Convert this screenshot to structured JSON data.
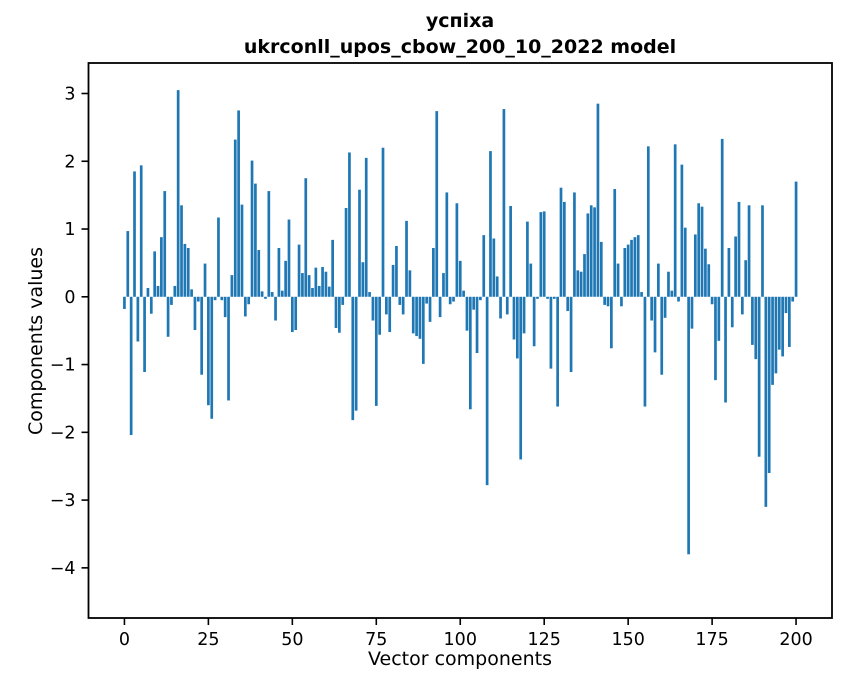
{
  "title": {
    "line1": "успіха",
    "line2": "ukrconll_upos_cbow_200_10_2022 model"
  },
  "chart_data": {
    "type": "bar",
    "title": "успіха — ukrconll_upos_cbow_200_10_2022 model",
    "xlabel": "Vector components",
    "ylabel": "Components values",
    "bar_color": "#1f77b4",
    "axis_color": "#000000",
    "grid": false,
    "legend": null,
    "x_ticks": [
      0,
      25,
      50,
      75,
      100,
      125,
      150,
      175,
      200
    ],
    "y_ticks": [
      3,
      2,
      1,
      0,
      -1,
      -2,
      -3,
      -4
    ],
    "xlim": [
      -10.7,
      210.7
    ],
    "ylim": [
      -4.74,
      3.45
    ],
    "x_start_index": 0,
    "values": [
      -0.18,
      0.97,
      -2.04,
      1.85,
      -0.66,
      1.94,
      -1.11,
      0.13,
      -0.25,
      0.67,
      0.16,
      0.88,
      1.56,
      -0.59,
      -0.12,
      0.16,
      3.05,
      1.35,
      0.78,
      0.72,
      0.11,
      -0.49,
      -0.07,
      -1.15,
      0.49,
      -1.6,
      -1.8,
      -0.05,
      1.17,
      -0.05,
      -0.3,
      -1.53,
      0.32,
      2.32,
      2.75,
      1.36,
      -0.29,
      -0.11,
      2.01,
      1.67,
      0.69,
      0.08,
      -0.03,
      1.56,
      0.07,
      -0.35,
      0.72,
      0.09,
      0.53,
      1.14,
      -0.52,
      -0.49,
      0.77,
      0.35,
      1.75,
      0.32,
      0.13,
      0.43,
      0.16,
      0.44,
      0.37,
      0.15,
      0.84,
      -0.46,
      -0.53,
      -0.12,
      1.31,
      2.13,
      -1.82,
      -1.68,
      1.58,
      0.51,
      2.05,
      0.07,
      -0.35,
      -1.61,
      -0.56,
      2.2,
      -0.26,
      -0.52,
      0.47,
      0.75,
      -0.12,
      -0.26,
      1.12,
      0.39,
      -0.54,
      -0.58,
      -0.62,
      -0.99,
      -0.1,
      -0.37,
      0.72,
      2.74,
      -0.3,
      0.35,
      1.54,
      -0.11,
      -0.07,
      1.38,
      0.53,
      0.09,
      -0.5,
      -1.66,
      -0.19,
      -0.83,
      -0.05,
      0.91,
      -2.78,
      2.15,
      0.86,
      0.3,
      -0.32,
      2.77,
      -0.26,
      1.34,
      -0.63,
      -0.91,
      -2.4,
      -0.54,
      1.11,
      0.49,
      -0.73,
      -0.03,
      1.25,
      1.26,
      -0.03,
      -1.06,
      -0.03,
      -1.62,
      1.61,
      1.4,
      -0.21,
      -1.11,
      1.54,
      0.39,
      0.37,
      0.63,
      1.23,
      1.35,
      1.32,
      2.85,
      0.81,
      -0.12,
      -0.14,
      -0.76,
      1.59,
      0.49,
      -0.14,
      0.72,
      0.77,
      0.84,
      0.88,
      0.91,
      0.07,
      -1.62,
      2.22,
      -0.35,
      -0.82,
      0.49,
      -1.15,
      -0.31,
      0.37,
      0.09,
      2.25,
      -0.07,
      1.95,
      1.02,
      -3.8,
      -0.47,
      0.92,
      1.38,
      1.33,
      0.71,
      0.48,
      -0.11,
      -1.23,
      -0.65,
      2.33,
      -1.56,
      0.72,
      -0.45,
      0.89,
      1.4,
      -0.26,
      0.54,
      1.35,
      -0.71,
      -0.92,
      -2.36,
      1.35,
      -3.1,
      -2.6,
      -1.3,
      -1.13,
      -0.78,
      -0.88,
      -0.24,
      -0.74,
      -0.07,
      1.7
    ]
  }
}
